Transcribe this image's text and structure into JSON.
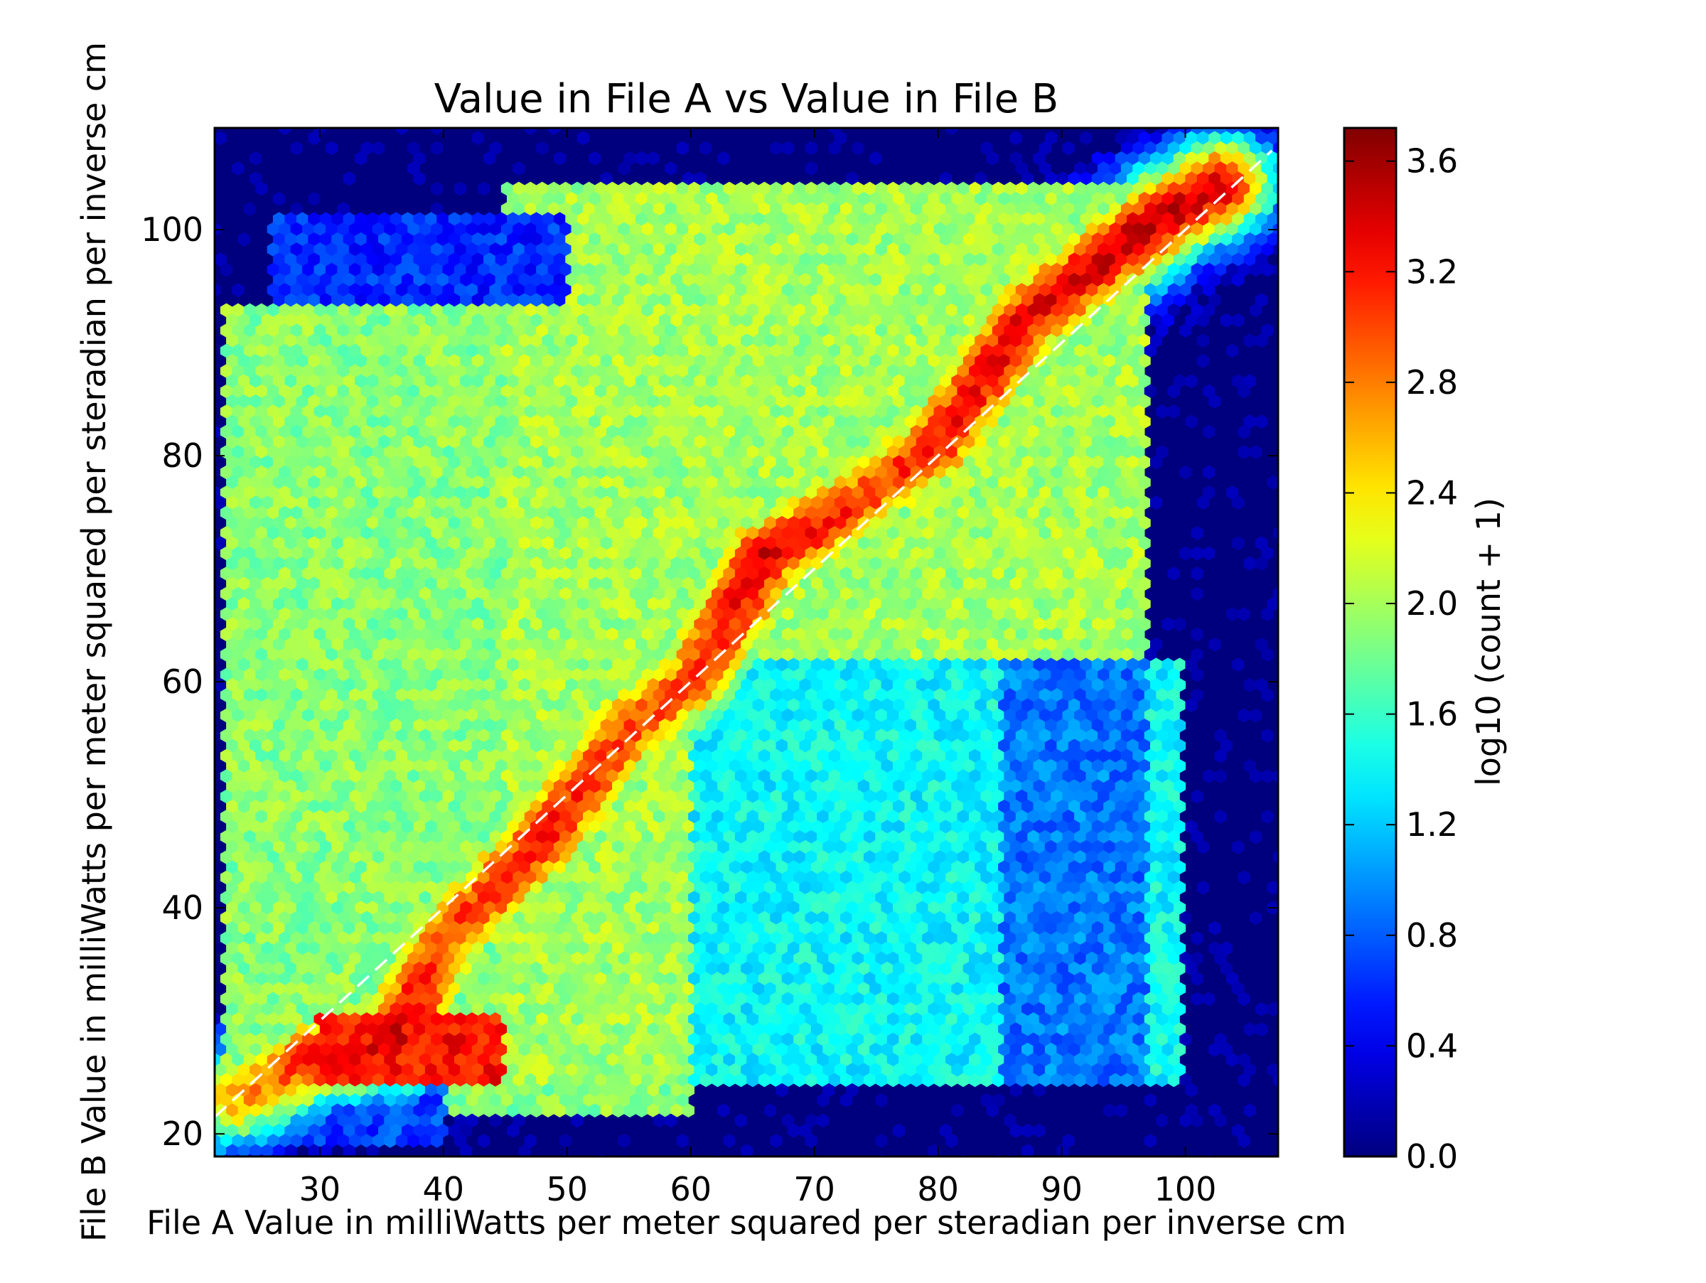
{
  "chart_data": {
    "type": "heatmap",
    "subtype": "hexbin",
    "title": "Value in File A vs Value in File B",
    "xlabel": "File A Value in milliWatts per meter squared per steradian per inverse cm",
    "ylabel": "File B Value in milliWatts per meter squared per steradian per inverse cm",
    "xlim": [
      21.5,
      107.5
    ],
    "ylim": [
      18,
      109
    ],
    "x_ticks": [
      30,
      40,
      50,
      60,
      70,
      80,
      90,
      100
    ],
    "y_ticks": [
      20,
      40,
      60,
      80,
      100
    ],
    "grid": false,
    "background_color": "#00007f",
    "reference_line": {
      "style": "dashed",
      "color": "#ffffff",
      "from": [
        21.5,
        21.5
      ],
      "to": [
        107,
        107
      ]
    },
    "colorbar": {
      "label": "log10 (count + 1)",
      "range": [
        0.0,
        3.72
      ],
      "ticks": [
        "0.0",
        "0.4",
        "0.8",
        "1.2",
        "1.6",
        "2.0",
        "2.4",
        "2.8",
        "3.2",
        "3.6"
      ],
      "colormap": "jet"
    },
    "density_regions": [
      {
        "x_range": [
          22,
          60
        ],
        "y_range": [
          22,
          93
        ],
        "log10_count": 1.9
      },
      {
        "x_range": [
          45,
          97
        ],
        "y_range": [
          24,
          104
        ],
        "log10_count": 2.0
      },
      {
        "x_range": [
          60,
          100
        ],
        "y_range": [
          24,
          62
        ],
        "log10_count": 1.4
      },
      {
        "x_range": [
          85,
          97
        ],
        "y_range": [
          24,
          62
        ],
        "log10_count": 0.9
      },
      {
        "x_range": [
          26,
          50
        ],
        "y_range": [
          93,
          101
        ],
        "log10_count": 0.6
      },
      {
        "x_range": [
          22,
          40
        ],
        "y_range": [
          19,
          24
        ],
        "log10_count": 0.7
      },
      {
        "x_range": [
          30,
          45
        ],
        "y_range": [
          24,
          31
        ],
        "log10_count": 3.2
      }
    ],
    "diagonal_ridge": [
      {
        "x": 23,
        "y": 23,
        "log10_count": 2.6
      },
      {
        "x": 30,
        "y": 27,
        "log10_count": 3.2
      },
      {
        "x": 36,
        "y": 28,
        "log10_count": 3.4
      },
      {
        "x": 40,
        "y": 37,
        "log10_count": 3.0
      },
      {
        "x": 48,
        "y": 46,
        "log10_count": 3.2
      },
      {
        "x": 55,
        "y": 56,
        "log10_count": 3.0
      },
      {
        "x": 60,
        "y": 60,
        "log10_count": 3.0
      },
      {
        "x": 66,
        "y": 71,
        "log10_count": 3.4
      },
      {
        "x": 75,
        "y": 77,
        "log10_count": 3.0
      },
      {
        "x": 80,
        "y": 81,
        "log10_count": 3.2
      },
      {
        "x": 87,
        "y": 92,
        "log10_count": 3.3
      },
      {
        "x": 98,
        "y": 101,
        "log10_count": 3.5
      },
      {
        "x": 103,
        "y": 104,
        "log10_count": 3.4
      }
    ]
  }
}
